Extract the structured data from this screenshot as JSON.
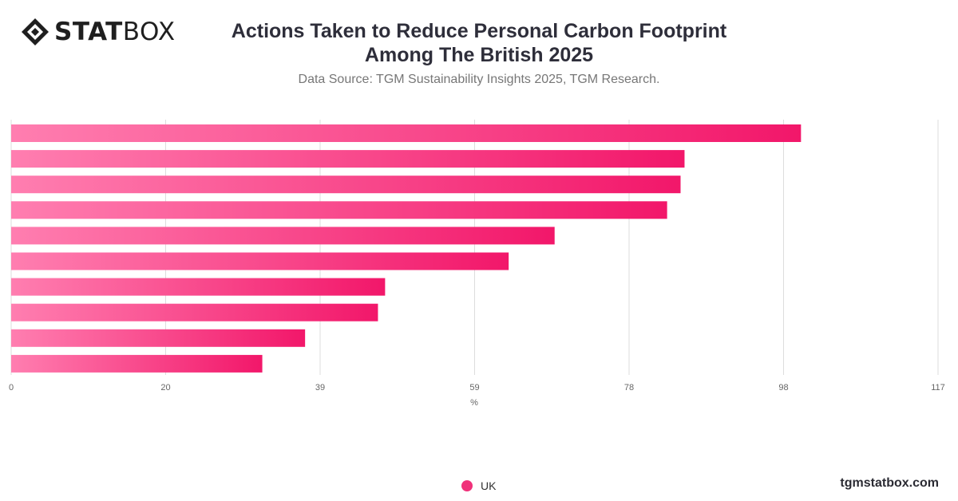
{
  "header": {
    "logo_bold": "STAT",
    "logo_light": "BOX",
    "title_line1": "Actions Taken to Reduce Personal Carbon Footprint",
    "title_line2": "Among The British 2025",
    "subtitle": "Data Source: TGM Sustainability Insights 2025, TGM Research."
  },
  "footer": {
    "brand": "tgmstatbox.com"
  },
  "colors": {
    "bar_start": "#ff7eb0",
    "bar_end": "#f2176a",
    "grid": "#dddddd",
    "legend_dot": "#f0317a"
  },
  "chart_data": {
    "type": "bar",
    "orientation": "horizontal",
    "title": "Actions Taken to Reduce Personal Carbon Footprint Among The British 2025",
    "xlabel": "%",
    "ylabel": "",
    "xlim": [
      0,
      117
    ],
    "ticks": [
      "0",
      "20",
      "39",
      "59",
      "78",
      "98",
      "117"
    ],
    "tick_values": [
      0,
      19.5,
      39,
      58.5,
      78,
      97.5,
      117
    ],
    "grid": true,
    "legend_position": "bottom-center",
    "series": [
      {
        "name": "UK",
        "values": [
          99.7,
          85,
          84.5,
          82.8,
          68.6,
          62.8,
          47.2,
          46.3,
          37.1,
          31.7
        ]
      }
    ]
  }
}
